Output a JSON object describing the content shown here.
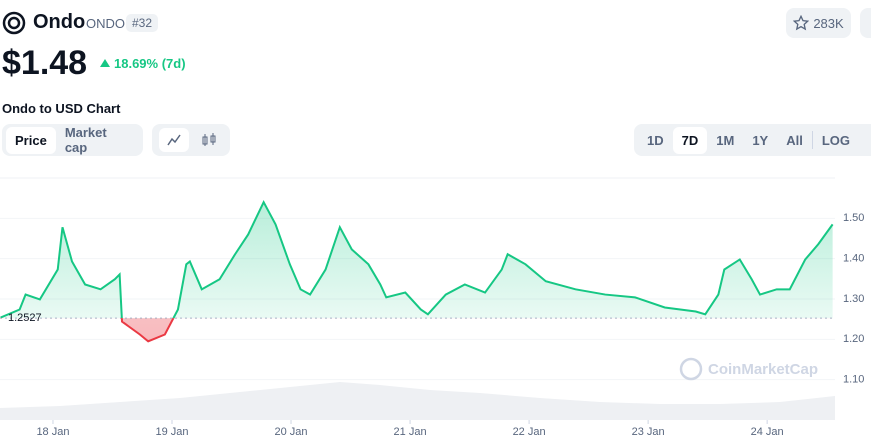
{
  "header": {
    "name": "Ondo",
    "symbol": "ONDO",
    "rank": "#32",
    "watchlist": "283K"
  },
  "price": {
    "value": "$1.48",
    "change": "18.69% (7d)"
  },
  "chart_title": "Ondo to USD Chart",
  "tabs": [
    "Price",
    "Market cap"
  ],
  "ranges": [
    "1D",
    "7D",
    "1M",
    "1Y",
    "All",
    "LOG"
  ],
  "watermark": "CoinMarketCap",
  "chart_data": {
    "type": "line",
    "x": [
      17.56,
      17.72,
      17.77,
      17.89,
      18.04,
      18.08,
      18.16,
      18.27,
      18.4,
      18.52,
      18.56,
      18.58,
      18.73,
      18.8,
      18.94,
      19.05,
      19.12,
      19.15,
      19.25,
      19.4,
      19.53,
      19.64,
      19.77,
      19.87,
      19.99,
      20.08,
      20.16,
      20.29,
      20.41,
      20.51,
      20.65,
      20.75,
      20.8,
      20.96,
      21.09,
      21.15,
      21.3,
      21.46,
      21.63,
      21.77,
      21.82,
      21.97,
      22.14,
      22.39,
      22.64,
      22.89,
      23.14,
      23.4,
      23.48,
      23.59,
      23.64,
      23.77,
      23.87,
      23.94,
      24.08,
      24.19,
      24.32,
      24.43,
      24.55
    ],
    "series": [
      {
        "color": "#16c784",
        "below_color": "#ea3943",
        "values": [
          1.254,
          1.274,
          1.311,
          1.299,
          1.373,
          1.478,
          1.393,
          1.336,
          1.324,
          1.349,
          1.361,
          1.244,
          1.212,
          1.195,
          1.212,
          1.274,
          1.386,
          1.393,
          1.324,
          1.349,
          1.411,
          1.46,
          1.54,
          1.485,
          1.386,
          1.324,
          1.311,
          1.373,
          1.478,
          1.423,
          1.386,
          1.336,
          1.304,
          1.316,
          1.274,
          1.262,
          1.311,
          1.336,
          1.316,
          1.373,
          1.411,
          1.386,
          1.344,
          1.324,
          1.311,
          1.304,
          1.279,
          1.269,
          1.262,
          1.311,
          1.373,
          1.398,
          1.349,
          1.311,
          1.324,
          1.324,
          1.398,
          1.436,
          1.485
        ]
      }
    ],
    "baseline": 1.2527,
    "xlim": [
      17.555,
      24.57
    ],
    "ylim": [
      1.0,
      1.6
    ],
    "xticks": [
      {
        "value": 18,
        "label": "18 Jan"
      },
      {
        "value": 19,
        "label": "19 Jan"
      },
      {
        "value": 20,
        "label": "20 Jan"
      },
      {
        "value": 21,
        "label": "21 Jan"
      },
      {
        "value": 22,
        "label": "22 Jan"
      },
      {
        "value": 23,
        "label": "23 Jan"
      },
      {
        "value": 24,
        "label": "24 Jan"
      }
    ],
    "yticks": [
      {
        "value": 1.1,
        "label": "1.10"
      },
      {
        "value": 1.2,
        "label": "1.20"
      },
      {
        "value": 1.3,
        "label": "1.30"
      },
      {
        "value": 1.4,
        "label": "1.40"
      },
      {
        "value": 1.5,
        "label": "1.50"
      }
    ],
    "grid": true
  }
}
